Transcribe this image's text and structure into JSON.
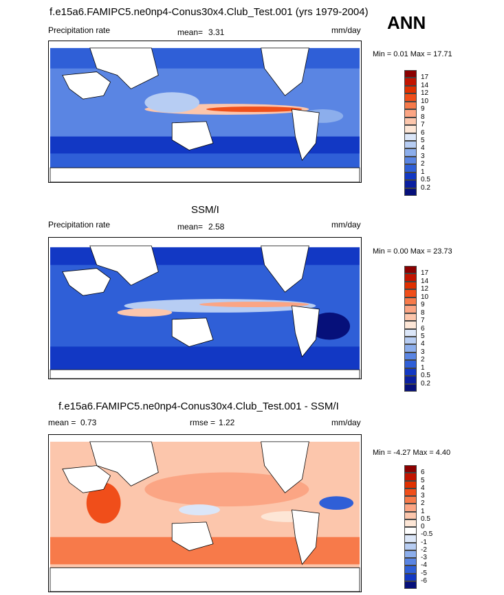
{
  "season": "ANN",
  "panels": [
    {
      "title": "f.e15a6.FAMIPC5.ne0np4-Conus30x4.Club_Test.001 (yrs 1979-2004)",
      "left_label": "Precipitation rate",
      "mean_label": "mean=",
      "mean_value": "3.31",
      "units": "mm/day",
      "min_label": "Min =",
      "min_value": "0.01",
      "max_label": "Max =",
      "max_value": "17.71",
      "colorbar": {
        "ticks": [
          "17",
          "14",
          "12",
          "10",
          "9",
          "8",
          "7",
          "6",
          "5",
          "4",
          "3",
          "2",
          "1",
          "0.5",
          "0.2"
        ],
        "colors": [
          "#8b0000",
          "#c21400",
          "#e03000",
          "#f04e1a",
          "#f77a4a",
          "#fba584",
          "#fcc6ac",
          "#fde6d6",
          "#dbe6f8",
          "#b7cdf3",
          "#8caeec",
          "#5a85e3",
          "#2f5fd7",
          "#1238c4",
          "#0a1fa0",
          "#06107a"
        ]
      }
    },
    {
      "title": "SSM/I",
      "left_label": "Precipitation rate",
      "mean_label": "mean=",
      "mean_value": "2.58",
      "units": "mm/day",
      "min_label": "Min =",
      "min_value": "0.00",
      "max_label": "Max =",
      "max_value": "23.73",
      "colorbar": {
        "ticks": [
          "17",
          "14",
          "12",
          "10",
          "9",
          "8",
          "7",
          "6",
          "5",
          "4",
          "3",
          "2",
          "1",
          "0.5",
          "0.2"
        ],
        "colors": [
          "#8b0000",
          "#c21400",
          "#e03000",
          "#f04e1a",
          "#f77a4a",
          "#fba584",
          "#fcc6ac",
          "#fde6d6",
          "#dbe6f8",
          "#b7cdf3",
          "#8caeec",
          "#5a85e3",
          "#2f5fd7",
          "#1238c4",
          "#0a1fa0",
          "#06107a"
        ]
      }
    },
    {
      "title": "f.e15a6.FAMIPC5.ne0np4-Conus30x4.Club_Test.001 - SSM/I",
      "left_label": "mean =",
      "mean_label": "",
      "mean_value": "0.73",
      "rmse_label": "rmse =",
      "rmse_value": "1.22",
      "units": "mm/day",
      "min_label": "Min =",
      "min_value": "-4.27",
      "max_label": "Max =",
      "max_value": "4.40",
      "colorbar": {
        "ticks": [
          "6",
          "5",
          "4",
          "3",
          "2",
          "1",
          "0.5",
          "0",
          "-0.5",
          "-1",
          "-2",
          "-3",
          "-4",
          "-5",
          "-6"
        ],
        "colors": [
          "#8b0000",
          "#c21400",
          "#e03000",
          "#f04e1a",
          "#f77a4a",
          "#fba584",
          "#fcc6ac",
          "#fde6d6",
          "#ffffff",
          "#dbe6f8",
          "#b7cdf3",
          "#8caeec",
          "#5a85e3",
          "#2f5fd7",
          "#1238c4",
          "#06107a"
        ]
      }
    }
  ]
}
